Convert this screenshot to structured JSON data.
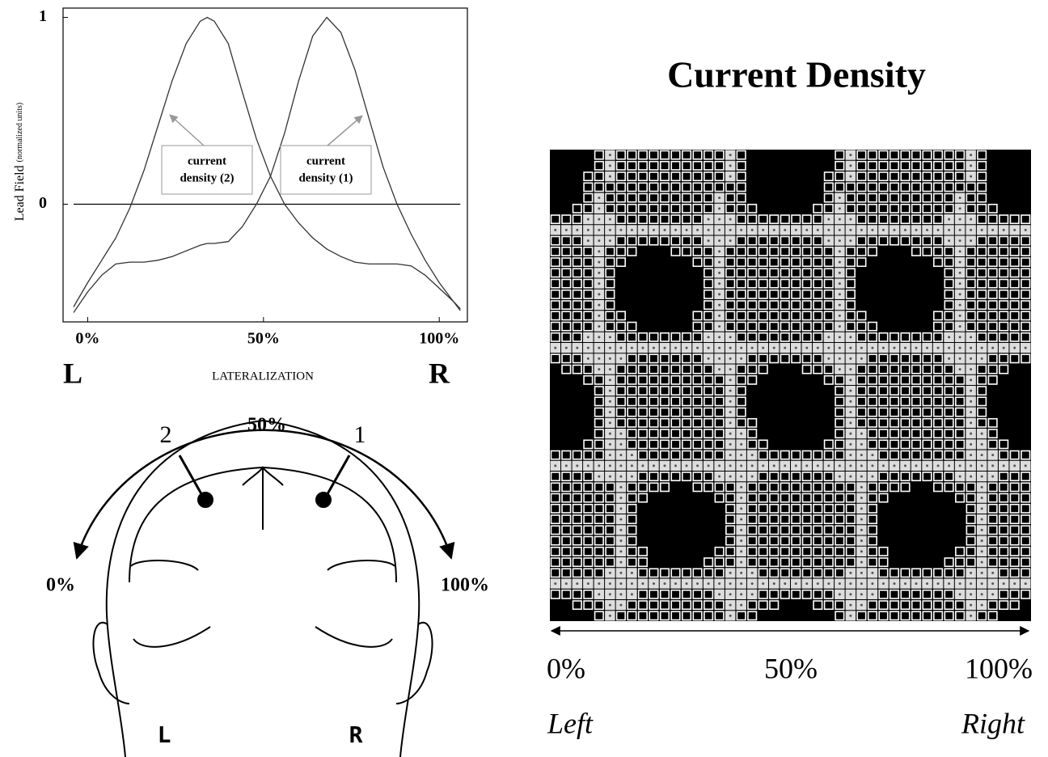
{
  "chart_data": {
    "type": "line",
    "x": [
      -4,
      0,
      4,
      8,
      12,
      16,
      20,
      24,
      28,
      32,
      34,
      36,
      40,
      44,
      48,
      52,
      56,
      60,
      64,
      68,
      72,
      76,
      80,
      84,
      88,
      92,
      96,
      100,
      104,
      106
    ],
    "series": [
      {
        "name": "current density (2)",
        "color": "#333333",
        "values": [
          -0.55,
          -0.42,
          -0.3,
          -0.18,
          -0.02,
          0.18,
          0.42,
          0.66,
          0.86,
          0.98,
          1.0,
          0.98,
          0.86,
          0.6,
          0.35,
          0.15,
          0.0,
          -0.1,
          -0.18,
          -0.24,
          -0.28,
          -0.31,
          -0.32,
          -0.32,
          -0.32,
          -0.33,
          -0.38,
          -0.45,
          -0.52,
          -0.56
        ]
      },
      {
        "name": "current density (1)",
        "color": "#333333",
        "values": [
          -0.58,
          -0.47,
          -0.38,
          -0.32,
          -0.31,
          -0.31,
          -0.3,
          -0.28,
          -0.25,
          -0.22,
          -0.21,
          -0.21,
          -0.2,
          -0.12,
          0.0,
          0.15,
          0.38,
          0.66,
          0.9,
          1.0,
          0.92,
          0.72,
          0.46,
          0.2,
          0.0,
          -0.16,
          -0.3,
          -0.42,
          -0.52,
          -0.57
        ]
      }
    ],
    "annotations": [
      {
        "lines": [
          "current",
          "density (2)"
        ]
      },
      {
        "lines": [
          "current",
          "density (1)"
        ]
      }
    ],
    "y_label": "Lead Field",
    "y_label_unit": "(normalized units)",
    "x_label": "LATERALIZATION",
    "x_end_labels": [
      "L",
      "R"
    ],
    "xlim": [
      -7,
      108
    ],
    "ylim": [
      -0.63,
      1.05
    ],
    "xticks": [
      {
        "value": 0,
        "label": "0%"
      },
      {
        "value": 50,
        "label": "50%"
      },
      {
        "value": 100,
        "label": "100%"
      }
    ],
    "yticks": [
      0,
      1
    ],
    "zero_line": true
  },
  "head_diagram": {
    "arc_labels": [
      "0%",
      "50%",
      "100%"
    ],
    "electrodes": [
      "2",
      "1"
    ],
    "sides": [
      "L",
      "R"
    ]
  },
  "current_density": {
    "title": "Current Density",
    "axis_labels": [
      "0%",
      "50%",
      "100%"
    ],
    "side_labels": [
      "Left",
      "Right"
    ]
  }
}
